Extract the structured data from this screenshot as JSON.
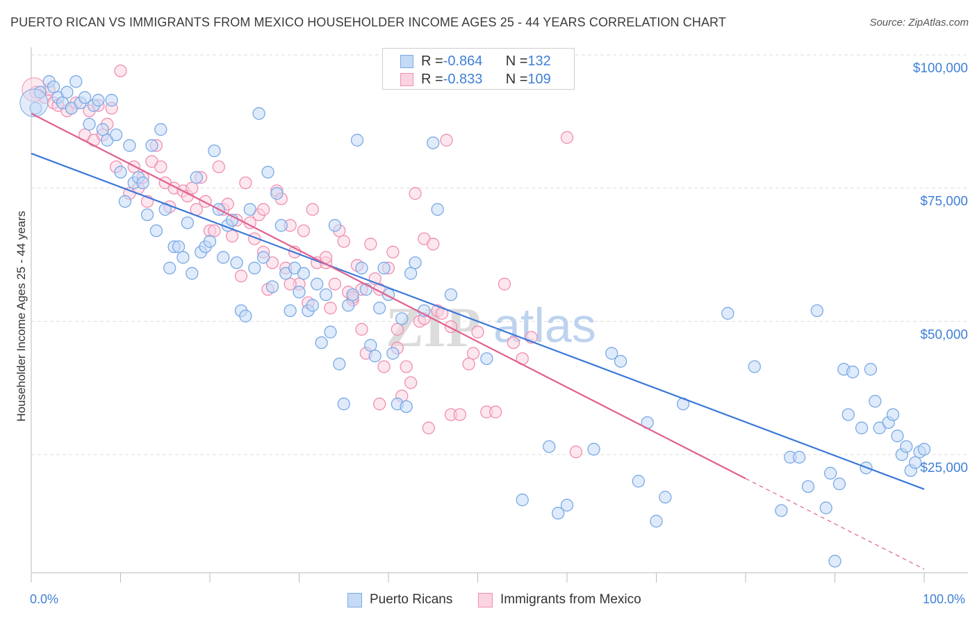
{
  "title": "PUERTO RICAN VS IMMIGRANTS FROM MEXICO HOUSEHOLDER INCOME AGES 25 - 44 YEARS CORRELATION CHART",
  "source": "Source: ZipAtlas.com",
  "watermark": {
    "zip": "ZIP",
    "atlas": "atlas"
  },
  "legend": {
    "series": [
      {
        "r_label": "R = ",
        "r_value": "-0.864",
        "n_label": "N = ",
        "n_value": "132",
        "color": "#7aa9e6",
        "fill": "#c5daf5"
      },
      {
        "r_label": "R = ",
        "r_value": "-0.833",
        "n_label": "N = ",
        "n_value": "109",
        "color": "#ef8fb0",
        "fill": "#fbd3e1"
      }
    ]
  },
  "bottom_legend": [
    "Puerto Ricans",
    "Immigrants from Mexico"
  ],
  "axis": {
    "ylabel": "Householder Income Ages 25 - 44 years",
    "x_min_label": "0.0%",
    "x_max_label": "100.0%",
    "y_ticks": [
      "$100,000",
      "$75,000",
      "$50,000",
      "$25,000"
    ]
  },
  "chart_data": {
    "type": "scatter",
    "xlim": [
      0,
      100
    ],
    "ylim": [
      0,
      105000
    ],
    "x_ticks": [
      0,
      100
    ],
    "y_ticks": [
      25000,
      50000,
      75000,
      100000
    ],
    "grid": true,
    "series": [
      {
        "name": "Puerto Ricans",
        "color": "#3b78d8",
        "trend": {
          "x0": 0,
          "y0": 81500,
          "x1": 100,
          "y1": 18500
        },
        "points": [
          [
            0.5,
            90000
          ],
          [
            1,
            93000
          ],
          [
            2,
            95000
          ],
          [
            2.5,
            94000
          ],
          [
            3,
            92000
          ],
          [
            3.5,
            91000
          ],
          [
            4,
            93000
          ],
          [
            4.5,
            90000
          ],
          [
            5,
            95000
          ],
          [
            5.5,
            91000
          ],
          [
            6,
            92000
          ],
          [
            6.5,
            87000
          ],
          [
            7,
            90500
          ],
          [
            7.5,
            91500
          ],
          [
            8,
            86000
          ],
          [
            8.5,
            84000
          ],
          [
            9,
            91500
          ],
          [
            9.5,
            85000
          ],
          [
            10,
            78000
          ],
          [
            10.5,
            72500
          ],
          [
            11,
            83000
          ],
          [
            11.5,
            76000
          ],
          [
            12,
            77000
          ],
          [
            12.5,
            76000
          ],
          [
            13,
            70000
          ],
          [
            13.5,
            83000
          ],
          [
            14,
            67000
          ],
          [
            14.5,
            86000
          ],
          [
            15,
            71000
          ],
          [
            15.5,
            60000
          ],
          [
            16,
            64000
          ],
          [
            16.5,
            64000
          ],
          [
            17,
            62000
          ],
          [
            17.5,
            68500
          ],
          [
            18,
            59000
          ],
          [
            18.5,
            77000
          ],
          [
            19,
            63000
          ],
          [
            19.5,
            64000
          ],
          [
            20,
            65000
          ],
          [
            20.5,
            82000
          ],
          [
            21,
            71000
          ],
          [
            21.5,
            62000
          ],
          [
            22,
            68000
          ],
          [
            22.5,
            69000
          ],
          [
            23,
            61000
          ],
          [
            23.5,
            52000
          ],
          [
            24,
            51000
          ],
          [
            24.5,
            71000
          ],
          [
            25,
            60000
          ],
          [
            25.5,
            89000
          ],
          [
            26,
            62000
          ],
          [
            26.5,
            78000
          ],
          [
            27,
            56500
          ],
          [
            27.5,
            74000
          ],
          [
            28,
            68000
          ],
          [
            28.5,
            59000
          ],
          [
            29,
            52000
          ],
          [
            29.5,
            60000
          ],
          [
            30,
            55500
          ],
          [
            30.5,
            59000
          ],
          [
            31,
            52000
          ],
          [
            31.5,
            53000
          ],
          [
            32,
            57000
          ],
          [
            32.5,
            46000
          ],
          [
            33,
            55000
          ],
          [
            33.5,
            48000
          ],
          [
            34,
            68000
          ],
          [
            34.5,
            42000
          ],
          [
            35,
            34500
          ],
          [
            35.5,
            53000
          ],
          [
            36,
            55000
          ],
          [
            36.5,
            84000
          ],
          [
            37,
            60000
          ],
          [
            37.5,
            56000
          ],
          [
            38,
            45500
          ],
          [
            38.5,
            43500
          ],
          [
            39,
            52500
          ],
          [
            39.5,
            60000
          ],
          [
            40,
            55000
          ],
          [
            40.5,
            44000
          ],
          [
            41,
            34500
          ],
          [
            41.5,
            50500
          ],
          [
            42,
            34000
          ],
          [
            42.5,
            59000
          ],
          [
            43,
            61000
          ],
          [
            44,
            52000
          ],
          [
            45,
            83500
          ],
          [
            45.5,
            71000
          ],
          [
            47,
            55000
          ],
          [
            51,
            43000
          ],
          [
            55,
            16500
          ],
          [
            58,
            26500
          ],
          [
            59,
            14000
          ],
          [
            60,
            15500
          ],
          [
            65,
            44000
          ],
          [
            66,
            42500
          ],
          [
            68,
            20000
          ],
          [
            69,
            31000
          ],
          [
            70,
            12500
          ],
          [
            71,
            17000
          ],
          [
            73,
            34500
          ],
          [
            78,
            51500
          ],
          [
            81,
            41500
          ],
          [
            84,
            14500
          ],
          [
            85,
            24500
          ],
          [
            86,
            24500
          ],
          [
            87,
            19000
          ],
          [
            88,
            52000
          ],
          [
            89,
            15000
          ],
          [
            89.5,
            21500
          ],
          [
            90,
            5000
          ],
          [
            90.5,
            19500
          ],
          [
            91,
            41000
          ],
          [
            91.5,
            32500
          ],
          [
            92,
            40500
          ],
          [
            93,
            30000
          ],
          [
            93.5,
            22500
          ],
          [
            94,
            41000
          ],
          [
            94.5,
            35000
          ],
          [
            95,
            30000
          ],
          [
            96,
            31000
          ],
          [
            96.5,
            32500
          ],
          [
            97,
            28500
          ],
          [
            97.5,
            25000
          ],
          [
            98,
            26500
          ],
          [
            98.5,
            22000
          ],
          [
            99,
            23500
          ],
          [
            99.5,
            25500
          ],
          [
            100,
            26000
          ],
          [
            63,
            26000
          ]
        ]
      },
      {
        "name": "Immigrants from Mexico",
        "color": "#e0608e",
        "trend": {
          "x0": 0,
          "y0": 89000,
          "x1": 80,
          "y1": 20500,
          "dash_to_x": 100,
          "dash_to_y": 3500
        },
        "points": [
          [
            0.5,
            93000
          ],
          [
            1.5,
            92000
          ],
          [
            2,
            93500
          ],
          [
            2.5,
            91000
          ],
          [
            3,
            90500
          ],
          [
            4,
            89500
          ],
          [
            4.5,
            90000
          ],
          [
            5,
            91000
          ],
          [
            6,
            85000
          ],
          [
            6.5,
            89500
          ],
          [
            7,
            84000
          ],
          [
            7.5,
            90500
          ],
          [
            8,
            85000
          ],
          [
            8.5,
            87000
          ],
          [
            9,
            90000
          ],
          [
            9.5,
            79000
          ],
          [
            10,
            97000
          ],
          [
            11,
            74000
          ],
          [
            11.5,
            79000
          ],
          [
            12,
            75000
          ],
          [
            12.5,
            77000
          ],
          [
            13,
            72500
          ],
          [
            13.5,
            80000
          ],
          [
            14,
            83000
          ],
          [
            14.5,
            79000
          ],
          [
            15,
            76000
          ],
          [
            15.5,
            71500
          ],
          [
            16,
            75000
          ],
          [
            17,
            74500
          ],
          [
            17.5,
            73500
          ],
          [
            18,
            75000
          ],
          [
            18.5,
            71000
          ],
          [
            19,
            77000
          ],
          [
            19.5,
            72500
          ],
          [
            20,
            67000
          ],
          [
            20.5,
            67000
          ],
          [
            21,
            79000
          ],
          [
            21.5,
            71000
          ],
          [
            22,
            72000
          ],
          [
            22.5,
            66000
          ],
          [
            23,
            69000
          ],
          [
            23.5,
            58500
          ],
          [
            24,
            76000
          ],
          [
            24.5,
            68500
          ],
          [
            25,
            65500
          ],
          [
            25.5,
            70000
          ],
          [
            26,
            63000
          ],
          [
            26.5,
            56000
          ],
          [
            27,
            61000
          ],
          [
            27.5,
            74500
          ],
          [
            28,
            73000
          ],
          [
            28.5,
            60000
          ],
          [
            29,
            68000
          ],
          [
            29.5,
            63000
          ],
          [
            30,
            57000
          ],
          [
            30.5,
            67000
          ],
          [
            31,
            53500
          ],
          [
            31.5,
            71000
          ],
          [
            32,
            61000
          ],
          [
            33,
            61000
          ],
          [
            33.5,
            52500
          ],
          [
            34,
            57000
          ],
          [
            34.5,
            67000
          ],
          [
            35,
            65000
          ],
          [
            35.5,
            55500
          ],
          [
            36,
            54000
          ],
          [
            36.5,
            60500
          ],
          [
            37,
            48500
          ],
          [
            37.5,
            44000
          ],
          [
            38,
            64500
          ],
          [
            38.5,
            58000
          ],
          [
            39,
            56000
          ],
          [
            39.5,
            41500
          ],
          [
            40,
            60000
          ],
          [
            40.5,
            63000
          ],
          [
            41,
            48500
          ],
          [
            41.5,
            36000
          ],
          [
            42,
            41500
          ],
          [
            42.5,
            38500
          ],
          [
            43,
            74000
          ],
          [
            43.5,
            50000
          ],
          [
            44,
            65500
          ],
          [
            44.5,
            30000
          ],
          [
            45,
            64500
          ],
          [
            45.5,
            52000
          ],
          [
            46,
            51500
          ],
          [
            46.5,
            84000
          ],
          [
            47,
            32500
          ],
          [
            48,
            32500
          ],
          [
            49,
            42000
          ],
          [
            49.5,
            44000
          ],
          [
            50,
            48000
          ],
          [
            51,
            33000
          ],
          [
            52,
            33000
          ],
          [
            53,
            57000
          ],
          [
            54,
            46000
          ],
          [
            55,
            43000
          ],
          [
            56,
            47000
          ],
          [
            60,
            84500
          ],
          [
            61,
            25500
          ],
          [
            36,
            54500
          ],
          [
            39,
            34500
          ],
          [
            44,
            50500
          ],
          [
            47,
            49000
          ],
          [
            41,
            45000
          ],
          [
            37,
            56000
          ],
          [
            33,
            62000
          ],
          [
            29,
            57000
          ],
          [
            26,
            71000
          ]
        ]
      }
    ]
  }
}
